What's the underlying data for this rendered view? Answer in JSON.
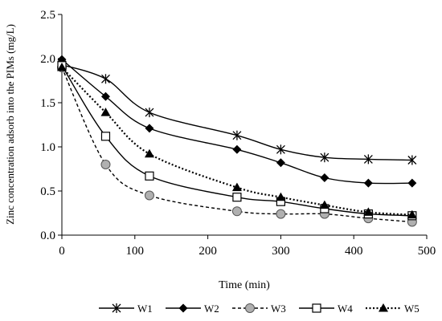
{
  "chart_data": {
    "type": "line",
    "xlabel": "Time (min)",
    "ylabel": "Zinc concentration adsorb into the PIMs (mg/L)",
    "xlim": [
      0,
      500
    ],
    "ylim": [
      0.0,
      2.5
    ],
    "x_ticks": [
      0,
      100,
      200,
      300,
      400,
      500
    ],
    "y_ticks": [
      "0.0",
      "0.5",
      "1.0",
      "1.5",
      "2.0",
      "2.5"
    ],
    "grid": false,
    "legend_position": "bottom",
    "series": [
      {
        "name": "W1",
        "marker": "star",
        "line_style": "solid",
        "x": [
          0,
          60,
          120,
          240,
          300,
          360,
          420,
          480
        ],
        "y": [
          1.93,
          1.77,
          1.39,
          1.13,
          0.97,
          0.88,
          0.86,
          0.85
        ]
      },
      {
        "name": "W2",
        "marker": "diamond",
        "line_style": "solid",
        "x": [
          0,
          60,
          120,
          240,
          300,
          360,
          420,
          480
        ],
        "y": [
          1.99,
          1.57,
          1.21,
          0.97,
          0.82,
          0.65,
          0.59,
          0.59
        ]
      },
      {
        "name": "W3",
        "marker": "circle",
        "line_style": "dashed",
        "x": [
          0,
          60,
          120,
          240,
          300,
          360,
          420,
          480
        ],
        "y": [
          1.9,
          0.8,
          0.45,
          0.27,
          0.24,
          0.24,
          0.19,
          0.15
        ]
      },
      {
        "name": "W4",
        "marker": "square",
        "line_style": "solid",
        "x": [
          0,
          60,
          120,
          240,
          300,
          360,
          420,
          480
        ],
        "y": [
          1.92,
          1.12,
          0.67,
          0.43,
          0.38,
          0.3,
          0.24,
          0.22
        ]
      },
      {
        "name": "W5",
        "marker": "triangle",
        "line_style": "dotted",
        "x": [
          0,
          60,
          120,
          240,
          300,
          360,
          420,
          480
        ],
        "y": [
          1.9,
          1.39,
          0.92,
          0.54,
          0.43,
          0.34,
          0.26,
          0.23
        ]
      }
    ]
  }
}
